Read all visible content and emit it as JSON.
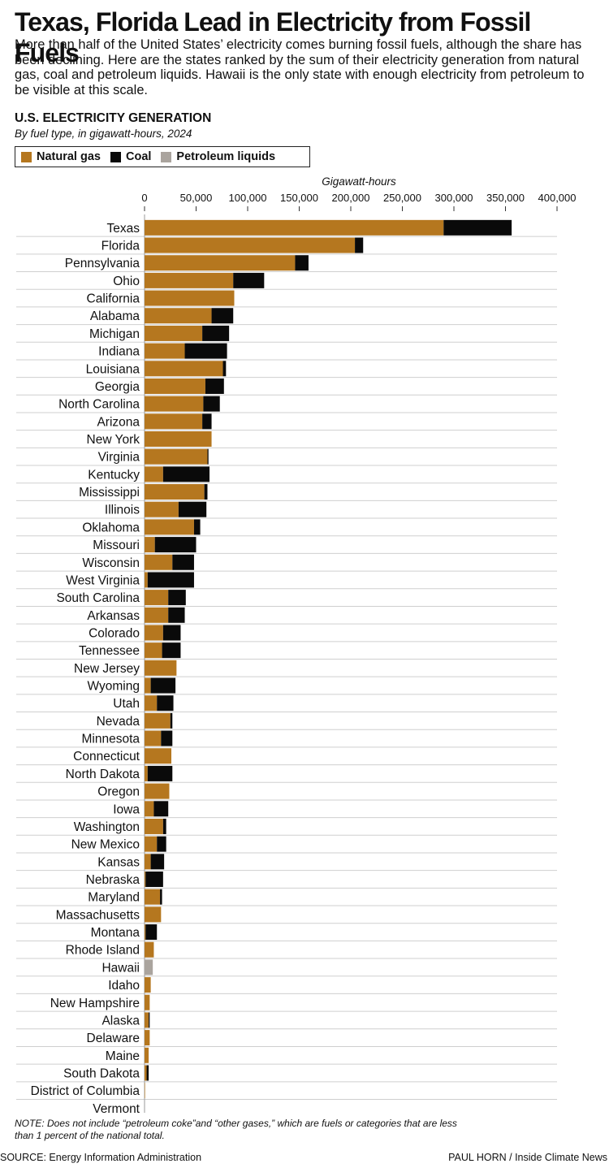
{
  "header": {
    "title": "Texas, Florida Lead in Electricity from Fossil Fuels",
    "intro": "More than half of the United States’ electricity comes burning fossil fuels, although the share has been declining. Here are the states ranked by the sum of their electricity generation from natural gas, coal and petroleum liquids. Hawaii is the only state with enough electricity from petroleum to be visible at this scale."
  },
  "footer": {
    "note": "NOTE: Does not include “petroleum coke”and “other gases,” which are fuels or categories that are less than 1 percent of the national total.",
    "source": "SOURCE: Energy Information Administration",
    "credit": "PAUL HORN / Inside Climate News"
  },
  "colors": {
    "gas": "#b5771f",
    "coal": "#0a0a0a",
    "petroleum": "#aaa49e",
    "gridline": "#cfcfcf"
  },
  "chart_data": {
    "type": "bar",
    "orientation": "horizontal",
    "stacked": true,
    "title": "U.S. ELECTRICITY GENERATION",
    "subtitle": "By fuel type, in gigawatt-hours, 2024",
    "xlabel": "Gigawatt-hours",
    "xlim": [
      0,
      400000
    ],
    "xticks": [
      0,
      50000,
      100000,
      150000,
      200000,
      250000,
      300000,
      350000,
      400000
    ],
    "xtick_labels": [
      "0",
      "50,000",
      "100,000",
      "150,000",
      "200,000",
      "250,000",
      "300,000",
      "350,000",
      "400,000"
    ],
    "legend_position": "top-left",
    "categories": [
      "Texas",
      "Florida",
      "Pennsylvania",
      "Ohio",
      "California",
      "Alabama",
      "Michigan",
      "Indiana",
      "Louisiana",
      "Georgia",
      "North Carolina",
      "Arizona",
      "New York",
      "Virginia",
      "Kentucky",
      "Mississippi",
      "Illinois",
      "Oklahoma",
      "Missouri",
      "Wisconsin",
      "West Virginia",
      "South Carolina",
      "Arkansas",
      "Colorado",
      "Tennessee",
      "New Jersey",
      "Wyoming",
      "Utah",
      "Nevada",
      "Minnesota",
      "Connecticut",
      "North Dakota",
      "Oregon",
      "Iowa",
      "Washington",
      "New Mexico",
      "Kansas",
      "Nebraska",
      "Maryland",
      "Massachusetts",
      "Montana",
      "Rhode Island",
      "Hawaii",
      "Idaho",
      "New Hampshire",
      "Alaska",
      "Delaware",
      "Maine",
      "South Dakota",
      "District of Columbia",
      "Vermont"
    ],
    "series": [
      {
        "name": "Natural gas",
        "values": [
          290000,
          204000,
          146000,
          86000,
          87000,
          65000,
          56000,
          39000,
          76000,
          59000,
          57000,
          56000,
          65000,
          61000,
          18000,
          58000,
          33000,
          48000,
          10000,
          27000,
          3000,
          23000,
          23000,
          18000,
          17000,
          31000,
          6000,
          12000,
          25000,
          16000,
          26000,
          3000,
          24000,
          9000,
          18000,
          12000,
          6000,
          1000,
          15000,
          16000,
          1000,
          9000,
          0,
          6000,
          5000,
          4000,
          5000,
          4000,
          2000,
          300,
          0
        ]
      },
      {
        "name": "Coal",
        "values": [
          66000,
          8000,
          13000,
          30000,
          0,
          21000,
          26000,
          41000,
          3000,
          18000,
          16000,
          9000,
          0,
          1000,
          45000,
          3000,
          27000,
          6000,
          40000,
          21000,
          45000,
          17000,
          16000,
          17000,
          18000,
          0,
          24000,
          16000,
          2000,
          11000,
          0,
          24000,
          0,
          14000,
          3000,
          9000,
          13000,
          17000,
          2000,
          0,
          11000,
          0,
          0,
          0,
          0,
          1000,
          0,
          0,
          2000,
          0,
          0
        ]
      },
      {
        "name": "Petroleum liquids",
        "values": [
          0,
          0,
          0,
          0,
          0,
          0,
          0,
          0,
          0,
          0,
          0,
          0,
          0,
          0,
          0,
          0,
          0,
          0,
          0,
          0,
          0,
          0,
          0,
          0,
          0,
          0,
          0,
          0,
          0,
          0,
          0,
          0,
          0,
          0,
          0,
          0,
          0,
          0,
          0,
          0,
          0,
          0,
          8000,
          0,
          0,
          0,
          0,
          0,
          0,
          0,
          0
        ]
      }
    ]
  }
}
